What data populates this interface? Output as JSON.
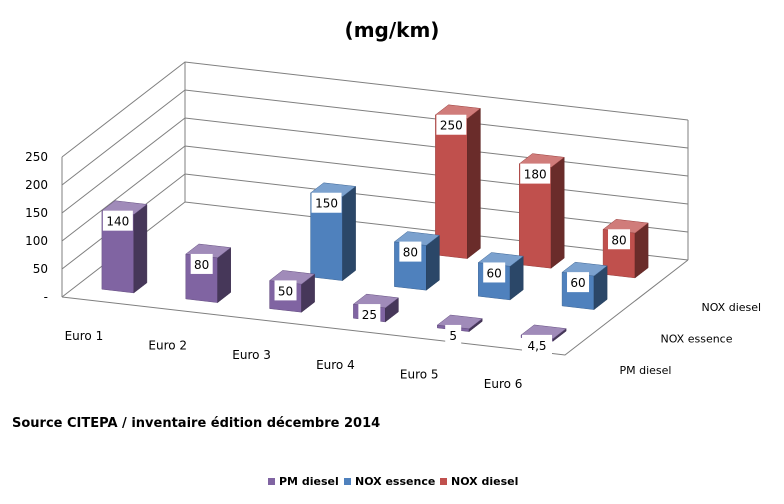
{
  "chart_data": {
    "type": "bar",
    "title": "(mg/km)",
    "categories": [
      "Euro 1",
      "Euro 2",
      "Euro 3",
      "Euro 4",
      "Euro 5",
      "Euro 6"
    ],
    "series": [
      {
        "name": "PM diesel",
        "values": [
          140,
          80,
          50,
          25,
          5,
          4.5
        ],
        "labels": [
          "140",
          "80",
          "50",
          "25",
          "5",
          "4,5"
        ],
        "color": "#8064A2"
      },
      {
        "name": "NOX essence",
        "values": [
          null,
          null,
          150,
          80,
          60,
          60
        ],
        "labels": [
          "",
          "",
          "150",
          "80",
          "60",
          "60"
        ],
        "color": "#4F81BD"
      },
      {
        "name": "NOX diesel",
        "values": [
          null,
          null,
          null,
          250,
          180,
          80
        ],
        "labels": [
          "",
          "",
          "",
          "250",
          "180",
          "80"
        ],
        "color": "#C0504D"
      }
    ],
    "yticks": [
      "-",
      "50",
      "100",
      "150",
      "200",
      "250"
    ],
    "ylim": [
      0,
      250
    ],
    "grid": true,
    "legend_position": "bottom",
    "style": "3d-column"
  },
  "source_note": "Source CITEPA / inventaire édition décembre 2014"
}
